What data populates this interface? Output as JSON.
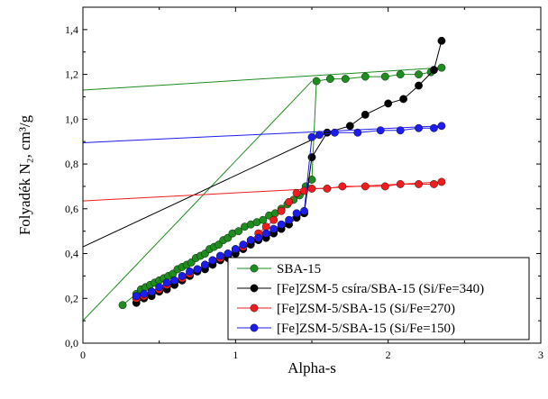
{
  "chart_data": {
    "type": "scatter",
    "xlabel": "Alpha-s",
    "ylabel": "Folyadék N₂, cm³/g",
    "xlim": [
      0,
      3
    ],
    "ylim": [
      0,
      1.5
    ],
    "x_ticks": [
      0,
      1,
      2,
      3
    ],
    "x_tick_labels": [
      "0",
      "1",
      "2",
      "3"
    ],
    "y_ticks": [
      0,
      0.2,
      0.4,
      0.6,
      0.8,
      1.0,
      1.2,
      1.4
    ],
    "y_tick_labels": [
      "0,0",
      "0,2",
      "0,4",
      "0,6",
      "0,8",
      "1,0",
      "1,2",
      "1,4"
    ],
    "grid": false,
    "legend_position": "bottom-right",
    "series": [
      {
        "name": "SBA-15",
        "color": "#1e8c1e",
        "x": [
          0.26,
          0.35,
          0.38,
          0.41,
          0.44,
          0.47,
          0.5,
          0.53,
          0.56,
          0.59,
          0.62,
          0.65,
          0.68,
          0.71,
          0.74,
          0.77,
          0.8,
          0.83,
          0.86,
          0.89,
          0.92,
          0.95,
          0.98,
          1.02,
          1.06,
          1.1,
          1.14,
          1.18,
          1.22,
          1.26,
          1.3,
          1.34,
          1.38,
          1.42,
          1.46,
          1.5,
          1.53,
          1.62,
          1.72,
          1.85,
          1.98,
          2.08,
          2.2,
          2.28,
          2.35
        ],
        "y": [
          0.17,
          0.22,
          0.24,
          0.25,
          0.26,
          0.27,
          0.28,
          0.29,
          0.3,
          0.31,
          0.33,
          0.34,
          0.35,
          0.36,
          0.38,
          0.39,
          0.4,
          0.42,
          0.43,
          0.44,
          0.46,
          0.47,
          0.49,
          0.5,
          0.52,
          0.53,
          0.54,
          0.55,
          0.57,
          0.58,
          0.6,
          0.62,
          0.64,
          0.66,
          0.7,
          0.73,
          1.17,
          1.18,
          1.18,
          1.19,
          1.19,
          1.2,
          1.2,
          1.21,
          1.23
        ],
        "fit_line": [
          [
            0,
            1.13
          ],
          [
            2.35,
            1.23
          ]
        ],
        "connector": [
          [
            0,
            0.1
          ],
          [
            1.5,
            1.17
          ]
        ]
      },
      {
        "name": "[Fe]ZSM-5 csíra/SBA-15 (Si/Fe=340)",
        "color": "#000000",
        "x": [
          0.35,
          0.4,
          0.45,
          0.5,
          0.55,
          0.6,
          0.65,
          0.7,
          0.75,
          0.8,
          0.85,
          0.9,
          0.95,
          1.0,
          1.05,
          1.1,
          1.15,
          1.2,
          1.25,
          1.3,
          1.35,
          1.4,
          1.45,
          1.5,
          1.6,
          1.75,
          1.85,
          2.0,
          2.1,
          2.2,
          2.3,
          2.35
        ],
        "y": [
          0.18,
          0.2,
          0.21,
          0.23,
          0.24,
          0.26,
          0.28,
          0.3,
          0.32,
          0.33,
          0.35,
          0.37,
          0.38,
          0.4,
          0.42,
          0.44,
          0.46,
          0.47,
          0.49,
          0.51,
          0.53,
          0.56,
          0.58,
          0.83,
          0.94,
          0.97,
          1.02,
          1.07,
          1.09,
          1.15,
          1.22,
          1.35
        ],
        "fit_line": [
          [
            0,
            0.43
          ],
          [
            1.6,
            0.94
          ]
        ]
      },
      {
        "name": "[Fe]ZSM-5/SBA-15 (Si/Fe=270)",
        "color": "#ee1c1c",
        "x": [
          0.35,
          0.4,
          0.45,
          0.5,
          0.55,
          0.6,
          0.65,
          0.7,
          0.75,
          0.8,
          0.85,
          0.9,
          0.95,
          1.0,
          1.05,
          1.1,
          1.15,
          1.2,
          1.25,
          1.3,
          1.35,
          1.4,
          1.45,
          1.5,
          1.6,
          1.7,
          1.85,
          1.98,
          2.08,
          2.2,
          2.3,
          2.35
        ],
        "y": [
          0.2,
          0.21,
          0.23,
          0.24,
          0.26,
          0.28,
          0.29,
          0.31,
          0.33,
          0.35,
          0.37,
          0.38,
          0.4,
          0.42,
          0.43,
          0.46,
          0.49,
          0.52,
          0.55,
          0.59,
          0.63,
          0.67,
          0.68,
          0.69,
          0.69,
          0.7,
          0.7,
          0.7,
          0.71,
          0.71,
          0.71,
          0.72
        ],
        "fit_line": [
          [
            0,
            0.635
          ],
          [
            2.35,
            0.72
          ]
        ]
      },
      {
        "name": "[Fe]ZSM-5/SBA-15 (Si/Fe=150)",
        "color": "#1c1cee",
        "x": [
          0.35,
          0.4,
          0.45,
          0.5,
          0.55,
          0.6,
          0.65,
          0.7,
          0.75,
          0.8,
          0.85,
          0.9,
          0.95,
          1.0,
          1.05,
          1.1,
          1.15,
          1.2,
          1.25,
          1.3,
          1.35,
          1.4,
          1.45,
          1.5,
          1.55,
          1.65,
          1.8,
          1.95,
          2.08,
          2.2,
          2.3,
          2.35
        ],
        "y": [
          0.21,
          0.22,
          0.23,
          0.25,
          0.27,
          0.28,
          0.3,
          0.32,
          0.33,
          0.35,
          0.37,
          0.39,
          0.4,
          0.42,
          0.44,
          0.46,
          0.47,
          0.49,
          0.51,
          0.53,
          0.55,
          0.58,
          0.59,
          0.92,
          0.93,
          0.94,
          0.94,
          0.95,
          0.95,
          0.96,
          0.96,
          0.97
        ],
        "fit_line": [
          [
            0,
            0.895
          ],
          [
            2.35,
            0.97
          ]
        ]
      }
    ]
  }
}
